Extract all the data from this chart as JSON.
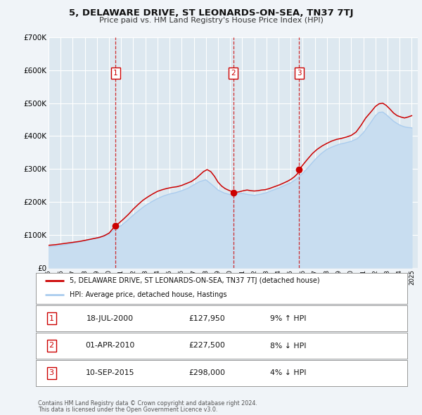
{
  "title": "5, DELAWARE DRIVE, ST LEONARDS-ON-SEA, TN37 7TJ",
  "subtitle": "Price paid vs. HM Land Registry's House Price Index (HPI)",
  "legend_property": "5, DELAWARE DRIVE, ST LEONARDS-ON-SEA, TN37 7TJ (detached house)",
  "legend_hpi": "HPI: Average price, detached house, Hastings",
  "footnote1": "Contains HM Land Registry data © Crown copyright and database right 2024.",
  "footnote2": "This data is licensed under the Open Government Licence v3.0.",
  "ylim": [
    0,
    700000
  ],
  "yticks": [
    0,
    100000,
    200000,
    300000,
    400000,
    500000,
    600000,
    700000
  ],
  "ytick_labels": [
    "£0",
    "£100K",
    "£200K",
    "£300K",
    "£400K",
    "£500K",
    "£600K",
    "£700K"
  ],
  "xmin": 1995.0,
  "xmax": 2025.5,
  "bg_color": "#f0f4f8",
  "plot_bg": "#dde8f0",
  "grid_color": "#ffffff",
  "property_color": "#cc0000",
  "hpi_color": "#aaccee",
  "hpi_fill_color": "#c8ddf0",
  "marker_color": "#cc0000",
  "sale_marker_size": 7,
  "transactions": [
    {
      "num": 1,
      "date_x": 2000.54,
      "price": 127950,
      "pct": "9%",
      "dir": "↑",
      "date_str": "18-JUL-2000",
      "price_str": "£127,950"
    },
    {
      "num": 2,
      "date_x": 2010.25,
      "price": 227500,
      "pct": "8%",
      "dir": "↓",
      "date_str": "01-APR-2010",
      "price_str": "£227,500"
    },
    {
      "num": 3,
      "date_x": 2015.71,
      "price": 298000,
      "pct": "4%",
      "dir": "↓",
      "date_str": "10-SEP-2015",
      "price_str": "£298,000"
    }
  ],
  "property_line": {
    "x": [
      1995.0,
      1995.3,
      1995.6,
      1996.0,
      1996.4,
      1996.8,
      1997.2,
      1997.6,
      1998.0,
      1998.4,
      1998.8,
      1999.2,
      1999.6,
      2000.0,
      2000.3,
      2000.54,
      2000.8,
      2001.2,
      2001.6,
      2002.0,
      2002.4,
      2002.8,
      2003.2,
      2003.6,
      2004.0,
      2004.4,
      2004.8,
      2005.2,
      2005.6,
      2006.0,
      2006.4,
      2006.8,
      2007.2,
      2007.5,
      2007.8,
      2008.1,
      2008.4,
      2008.7,
      2009.0,
      2009.3,
      2009.6,
      2009.9,
      2010.1,
      2010.25,
      2010.5,
      2010.8,
      2011.1,
      2011.4,
      2011.7,
      2012.0,
      2012.3,
      2012.6,
      2012.9,
      2013.2,
      2013.5,
      2013.8,
      2014.1,
      2014.4,
      2014.7,
      2015.0,
      2015.3,
      2015.6,
      2015.71,
      2016.0,
      2016.4,
      2016.8,
      2017.2,
      2017.6,
      2018.0,
      2018.4,
      2018.8,
      2019.2,
      2019.6,
      2020.0,
      2020.4,
      2020.8,
      2021.2,
      2021.6,
      2022.0,
      2022.3,
      2022.6,
      2022.9,
      2023.2,
      2023.5,
      2023.8,
      2024.1,
      2024.4,
      2024.7,
      2025.0
    ],
    "y": [
      68000,
      69000,
      70000,
      72000,
      74000,
      76000,
      78000,
      80000,
      83000,
      86000,
      89000,
      92000,
      97000,
      105000,
      118000,
      127950,
      135000,
      148000,
      162000,
      178000,
      192000,
      205000,
      215000,
      224000,
      232000,
      237000,
      241000,
      244000,
      246000,
      250000,
      256000,
      262000,
      272000,
      282000,
      292000,
      298000,
      292000,
      278000,
      260000,
      248000,
      240000,
      235000,
      232000,
      227500,
      229000,
      231000,
      234000,
      236000,
      234000,
      233000,
      234000,
      236000,
      237000,
      240000,
      244000,
      248000,
      252000,
      257000,
      262000,
      268000,
      276000,
      287000,
      298000,
      312000,
      330000,
      347000,
      360000,
      370000,
      378000,
      385000,
      390000,
      393000,
      397000,
      402000,
      412000,
      432000,
      455000,
      472000,
      490000,
      498000,
      500000,
      493000,
      482000,
      470000,
      462000,
      458000,
      455000,
      458000,
      462000
    ]
  },
  "hpi_line": {
    "x": [
      1995.0,
      1995.3,
      1995.6,
      1996.0,
      1996.4,
      1996.8,
      1997.2,
      1997.6,
      1998.0,
      1998.4,
      1998.8,
      1999.2,
      1999.6,
      2000.0,
      2000.5,
      2001.0,
      2001.5,
      2002.0,
      2002.5,
      2003.0,
      2003.5,
      2004.0,
      2004.5,
      2005.0,
      2005.5,
      2006.0,
      2006.5,
      2007.0,
      2007.5,
      2008.0,
      2008.5,
      2009.0,
      2009.5,
      2010.0,
      2010.5,
      2011.0,
      2011.5,
      2012.0,
      2012.5,
      2013.0,
      2013.5,
      2014.0,
      2014.5,
      2015.0,
      2015.5,
      2016.0,
      2016.5,
      2017.0,
      2017.5,
      2018.0,
      2018.5,
      2019.0,
      2019.5,
      2020.0,
      2020.5,
      2021.0,
      2021.5,
      2022.0,
      2022.3,
      2022.6,
      2022.9,
      2023.2,
      2023.5,
      2023.8,
      2024.1,
      2024.4,
      2024.7,
      2025.0
    ],
    "y": [
      64000,
      65000,
      66000,
      68000,
      70000,
      73000,
      76000,
      79000,
      82000,
      85000,
      89000,
      93000,
      98000,
      104000,
      116000,
      128000,
      143000,
      160000,
      175000,
      189000,
      200000,
      210000,
      218000,
      224000,
      228000,
      234000,
      241000,
      252000,
      262000,
      267000,
      252000,
      236000,
      227000,
      222000,
      224000,
      226000,
      222000,
      220000,
      223000,
      228000,
      235000,
      242000,
      250000,
      258000,
      270000,
      287000,
      307000,
      328000,
      346000,
      360000,
      368000,
      375000,
      379000,
      384000,
      392000,
      410000,
      435000,
      462000,
      472000,
      473000,
      465000,
      455000,
      445000,
      438000,
      432000,
      428000,
      426000,
      425000
    ]
  }
}
